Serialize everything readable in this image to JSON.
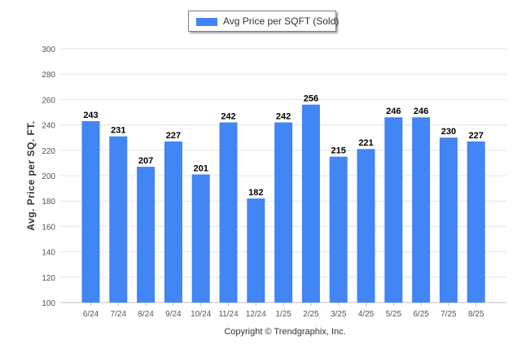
{
  "legend": {
    "label": "Avg Price per SQFT (Sold)"
  },
  "footer": {
    "text": "Copyright © Trendgraphix, Inc."
  },
  "colors": {
    "bar": "#4285f4",
    "grid": "#e6e6e6",
    "axis_text": "#555555",
    "data_label": "#000000"
  },
  "chart_data": {
    "type": "bar",
    "title": "",
    "xlabel": "",
    "ylabel": "Avg. Price per SQ. FT.",
    "ylim": [
      100,
      300
    ],
    "yticks": [
      100,
      120,
      140,
      160,
      180,
      200,
      220,
      240,
      260,
      280,
      300
    ],
    "grid": true,
    "legend_position": "top-center",
    "categories": [
      "6/24",
      "7/24",
      "8/24",
      "9/24",
      "10/24",
      "11/24",
      "12/24",
      "1/25",
      "2/25",
      "3/25",
      "4/25",
      "5/25",
      "6/25",
      "7/25",
      "8/25"
    ],
    "series": [
      {
        "name": "Avg Price per SQFT (Sold)",
        "values": [
          243,
          231,
          207,
          227,
          201,
          242,
          182,
          242,
          256,
          215,
          221,
          246,
          246,
          230,
          227
        ]
      }
    ]
  }
}
